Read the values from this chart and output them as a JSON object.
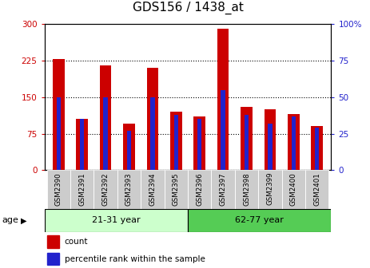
{
  "title": "GDS156 / 1438_at",
  "samples": [
    "GSM2390",
    "GSM2391",
    "GSM2392",
    "GSM2393",
    "GSM2394",
    "GSM2395",
    "GSM2396",
    "GSM2397",
    "GSM2398",
    "GSM2399",
    "GSM2400",
    "GSM2401"
  ],
  "red_values": [
    228,
    105,
    215,
    95,
    210,
    120,
    110,
    290,
    130,
    125,
    115,
    90
  ],
  "blue_values_pct": [
    50,
    35,
    50,
    27,
    50,
    38,
    35,
    55,
    38,
    32,
    37,
    29
  ],
  "red_color": "#cc0000",
  "blue_color": "#2222cc",
  "left_ylim": [
    0,
    300
  ],
  "right_ylim": [
    0,
    100
  ],
  "left_yticks": [
    0,
    75,
    150,
    225,
    300
  ],
  "right_yticks": [
    0,
    25,
    50,
    75,
    100
  ],
  "right_yticklabels": [
    "0",
    "25",
    "50",
    "75",
    "100%"
  ],
  "groups": [
    {
      "label": "21-31 year",
      "start": 0,
      "end": 5
    },
    {
      "label": "62-77 year",
      "start": 6,
      "end": 11
    }
  ],
  "group_colors": [
    "#ccffcc",
    "#55cc55"
  ],
  "age_label": "age",
  "legend_items": [
    {
      "color": "#cc0000",
      "label": "count"
    },
    {
      "color": "#2222cc",
      "label": "percentile rank within the sample"
    }
  ],
  "red_bar_width": 0.5,
  "blue_bar_width": 0.18,
  "title_fontsize": 11,
  "tick_fontsize": 7.5,
  "axis_label_color_left": "#cc0000",
  "axis_label_color_right": "#2222cc",
  "background_color": "#ffffff",
  "sample_box_color": "#cccccc",
  "grid_color": "#000000"
}
